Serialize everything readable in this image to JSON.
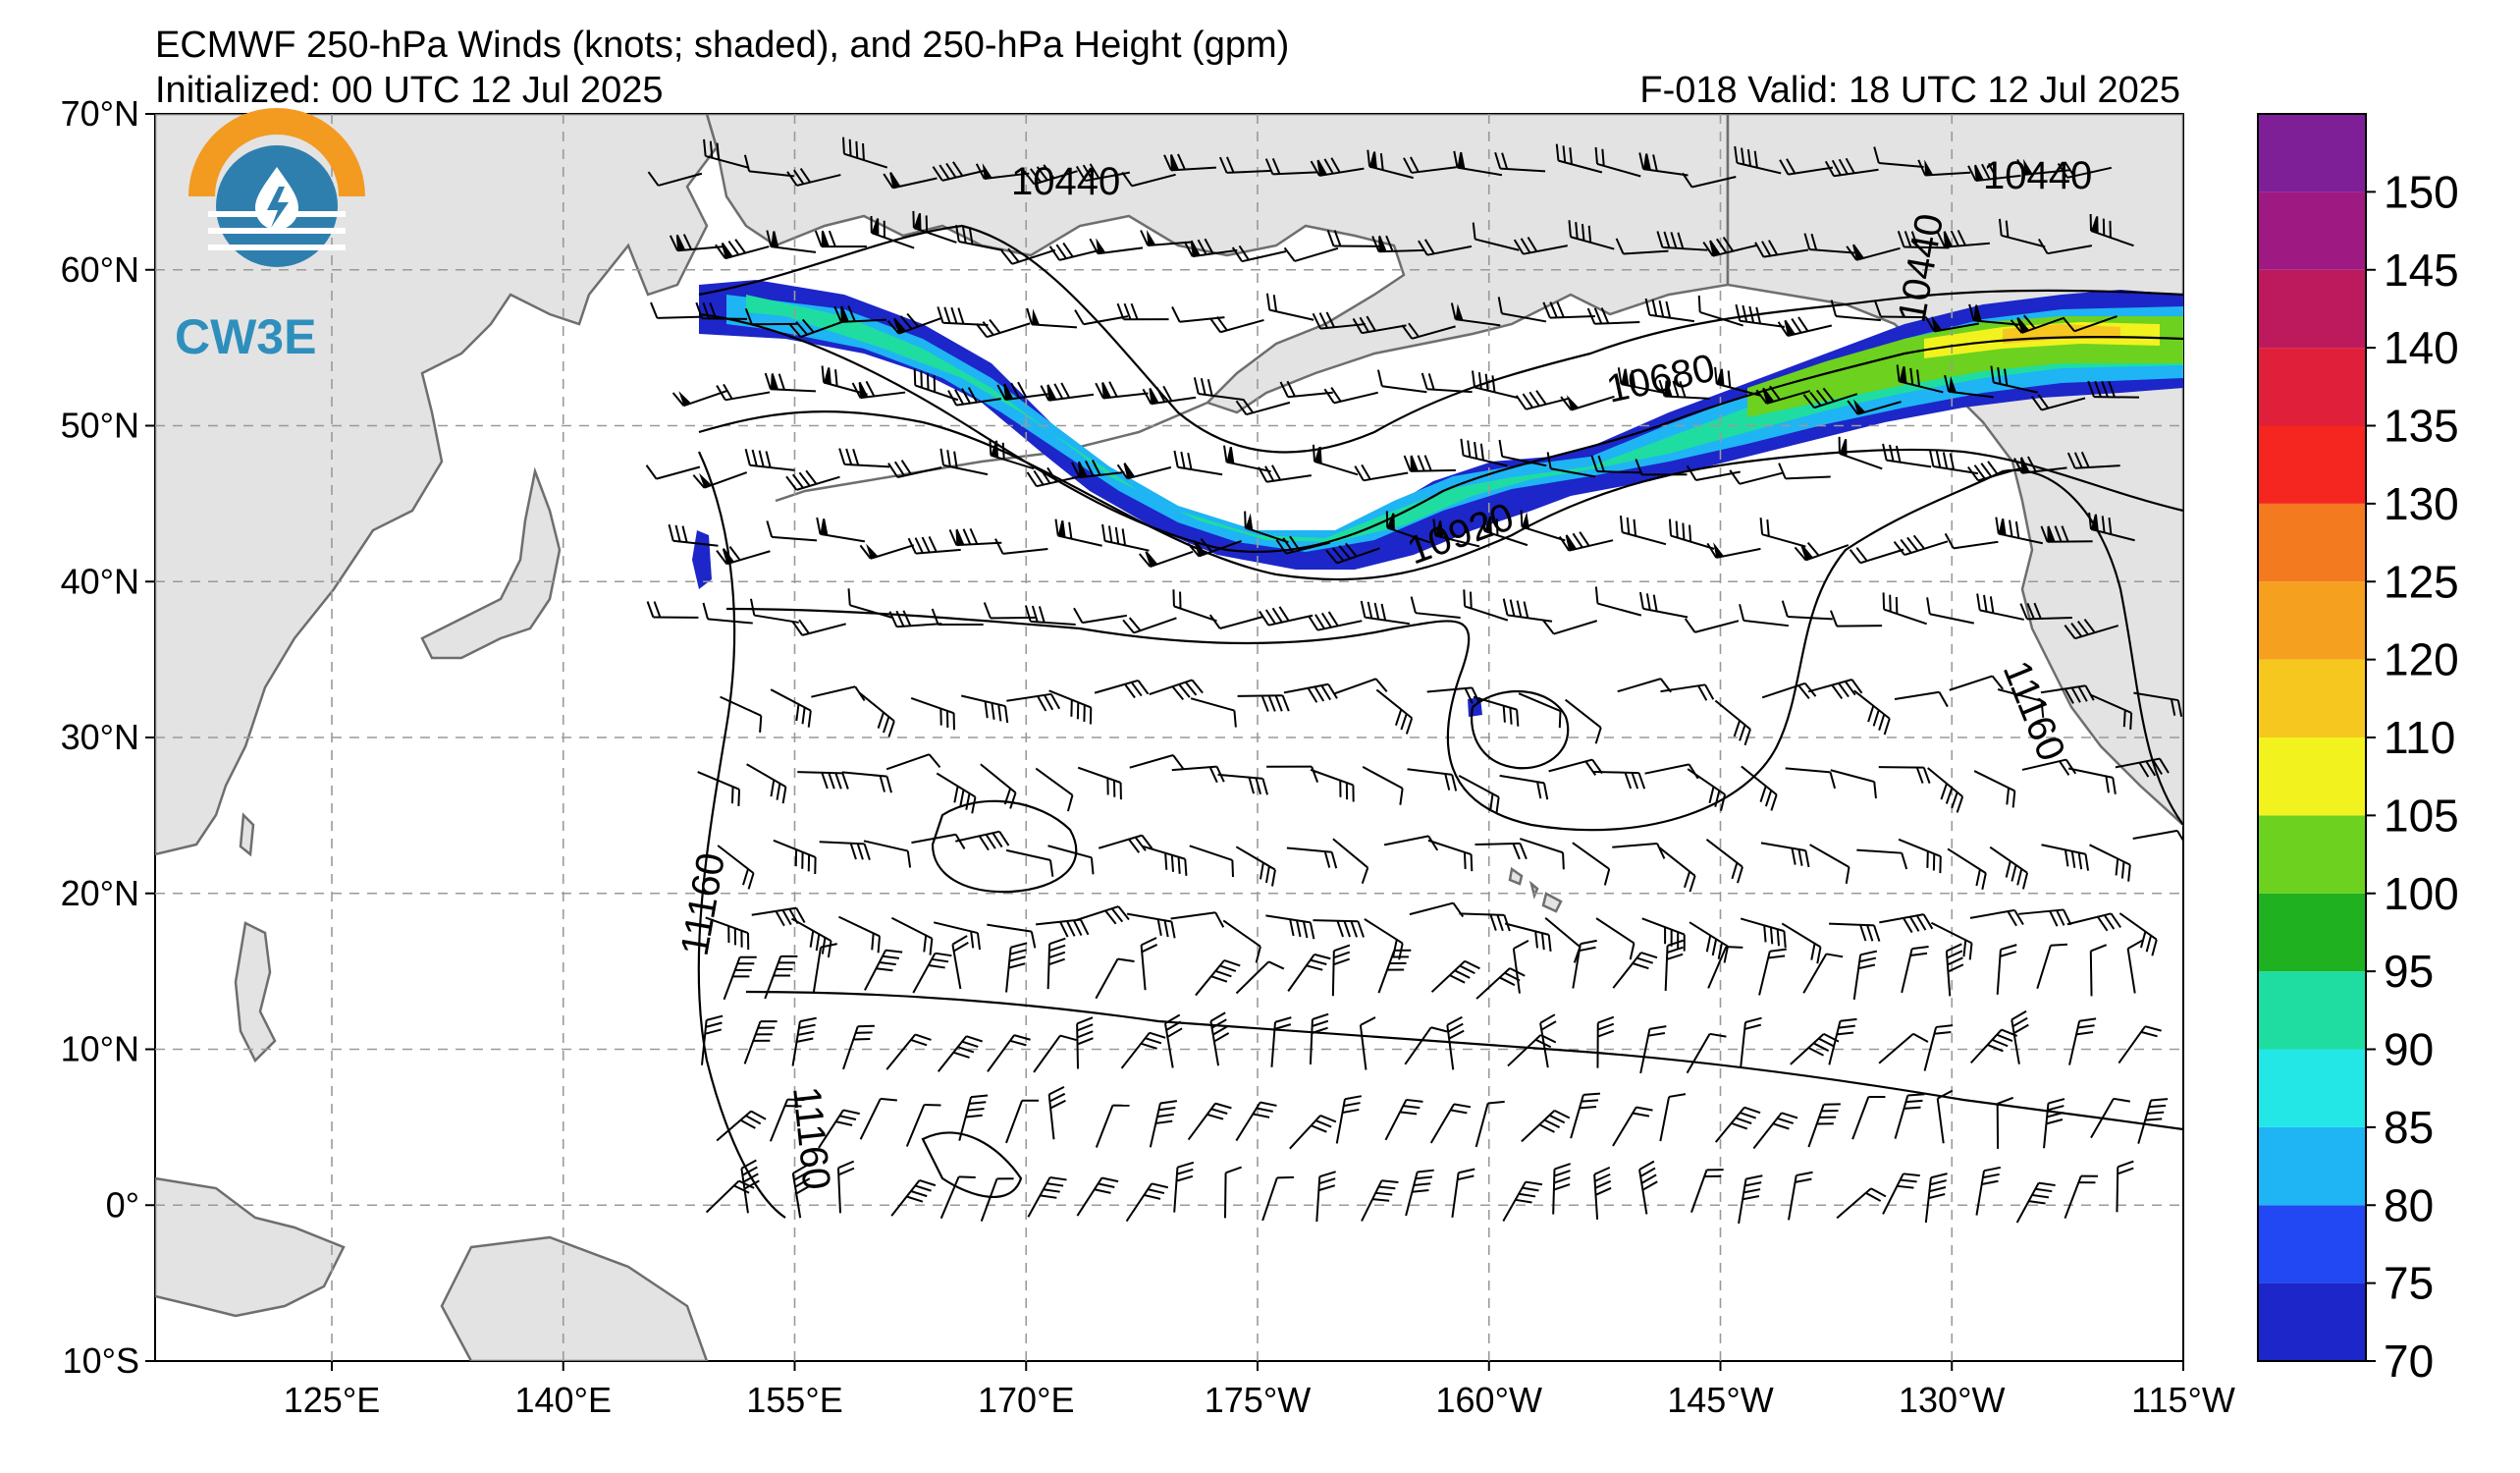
{
  "header": {
    "title": "ECMWF 250-hPa Winds (knots; shaded), and 250-hPa Height (gpm)",
    "init": "Initialized: 00 UTC 12 Jul 2025",
    "valid": "F-018  Valid: 18 UTC 12 Jul 2025"
  },
  "logo": {
    "text": "CW3E"
  },
  "map": {
    "lat_labels": [
      "70°N",
      "60°N",
      "50°N",
      "40°N",
      "30°N",
      "20°N",
      "10°N",
      "0°",
      "10°S"
    ],
    "lon_labels": [
      "125°E",
      "140°E",
      "155°E",
      "170°E",
      "175°W",
      "160°W",
      "145°W",
      "130°W",
      "115°W"
    ],
    "land_color": "#e3e3e3",
    "coast_color": "#6e6e6e",
    "grid_color": "#9a9a9a",
    "height_contour_labels": [
      "10440",
      "10440",
      "10440",
      "10680",
      "10920",
      "11160",
      "11160",
      "11160"
    ]
  },
  "colorbar": {
    "labels": [
      "70",
      "75",
      "80",
      "85",
      "90",
      "95",
      "100",
      "105",
      "110",
      "120",
      "125",
      "130",
      "135",
      "140",
      "145",
      "150"
    ],
    "colors": [
      "#1d26c9",
      "#2148f2",
      "#1fb4f4",
      "#23e6e6",
      "#1fdda0",
      "#1fb11f",
      "#6dd11f",
      "#f2f21f",
      "#f6c81f",
      "#f6a01f",
      "#f47a1f",
      "#f5251f",
      "#e0203a",
      "#bd1a5e",
      "#9e1a82",
      "#7e1f98"
    ]
  }
}
